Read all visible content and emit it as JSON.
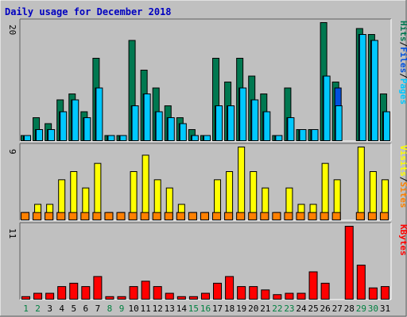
{
  "title": "Daily usage for December 2018",
  "chart_data": [
    {
      "type": "bar",
      "panel": "top",
      "ymax_label": "20",
      "ylim": [
        0,
        20
      ],
      "legend": [
        {
          "name": "Pages",
          "color": "#00c8ff"
        },
        {
          "name": "Files",
          "color": "#0050e0"
        },
        {
          "name": "Hits",
          "color": "#007850"
        }
      ],
      "legend_separator": "/",
      "x": [
        "1",
        "2",
        "3",
        "4",
        "5",
        "6",
        "7",
        "8",
        "9",
        "10",
        "11",
        "12",
        "13",
        "14",
        "15",
        "16",
        "17",
        "18",
        "19",
        "20",
        "21",
        "22",
        "23",
        "24",
        "25",
        "26",
        "27",
        "28",
        "29",
        "30",
        "31"
      ],
      "series": [
        {
          "name": "Hits",
          "color": "#007850",
          "values": [
            1,
            4,
            3,
            7,
            8,
            5,
            14,
            1,
            1,
            17,
            12,
            9,
            6,
            4,
            2,
            1,
            14,
            10,
            14,
            11,
            8,
            1,
            9,
            2,
            2,
            20,
            10,
            0,
            19,
            18,
            8
          ]
        },
        {
          "name": "Files",
          "color": "#0050e0",
          "values": [
            1,
            2,
            2,
            5,
            7,
            4,
            9,
            1,
            1,
            6,
            8,
            5,
            4,
            3,
            1,
            1,
            6,
            6,
            9,
            7,
            5,
            1,
            4,
            2,
            2,
            11,
            9,
            0,
            18,
            17,
            5
          ]
        },
        {
          "name": "Pages",
          "color": "#00c8ff",
          "values": [
            1,
            2,
            2,
            5,
            7,
            4,
            9,
            1,
            1,
            6,
            8,
            5,
            4,
            3,
            1,
            1,
            6,
            6,
            9,
            7,
            5,
            1,
            4,
            2,
            2,
            11,
            6,
            0,
            18,
            17,
            5
          ]
        }
      ]
    },
    {
      "type": "bar",
      "panel": "middle",
      "ymax_label": "9",
      "ylim": [
        0,
        9
      ],
      "legend": [
        {
          "name": "Sites",
          "color": "#ff8000"
        },
        {
          "name": "Visits",
          "color": "#ffff00"
        }
      ],
      "legend_separator": "/",
      "x": [
        "1",
        "2",
        "3",
        "4",
        "5",
        "6",
        "7",
        "8",
        "9",
        "10",
        "11",
        "12",
        "13",
        "14",
        "15",
        "16",
        "17",
        "18",
        "19",
        "20",
        "21",
        "22",
        "23",
        "24",
        "25",
        "26",
        "27",
        "28",
        "29",
        "30",
        "31"
      ],
      "series": [
        {
          "name": "Visits",
          "color": "#ffff00",
          "values": [
            1,
            2,
            2,
            5,
            6,
            4,
            7,
            1,
            1,
            6,
            8,
            5,
            4,
            2,
            1,
            1,
            5,
            6,
            9,
            6,
            4,
            1,
            4,
            2,
            2,
            7,
            5,
            0,
            9,
            6,
            5
          ]
        },
        {
          "name": "Sites",
          "color": "#ff8000",
          "values": [
            1,
            1,
            1,
            1,
            1,
            1,
            1,
            1,
            1,
            1,
            1,
            1,
            1,
            1,
            1,
            1,
            1,
            1,
            1,
            1,
            1,
            1,
            1,
            1,
            1,
            1,
            1,
            0,
            1,
            1,
            1
          ]
        }
      ]
    },
    {
      "type": "bar",
      "panel": "bottom",
      "ymax_label": "11",
      "ylim": [
        0,
        11
      ],
      "legend": [
        {
          "name": "KBytes",
          "color": "#ff0000"
        }
      ],
      "x": [
        "1",
        "2",
        "3",
        "4",
        "5",
        "6",
        "7",
        "8",
        "9",
        "10",
        "11",
        "12",
        "13",
        "14",
        "15",
        "16",
        "17",
        "18",
        "19",
        "20",
        "21",
        "22",
        "23",
        "24",
        "25",
        "26",
        "27",
        "28",
        "29",
        "30",
        "31"
      ],
      "series": [
        {
          "name": "KBytes",
          "color": "#ff0000",
          "values": [
            0.5,
            1,
            1,
            2,
            2.5,
            2,
            3.5,
            0.5,
            0.5,
            2,
            2.8,
            2,
            1,
            0.5,
            0.5,
            1,
            2.5,
            3.5,
            2,
            2,
            1.5,
            0.8,
            1,
            1,
            4.2,
            2.5,
            0,
            11,
            5.2,
            1.8,
            2
          ]
        }
      ]
    }
  ],
  "x_labels": [
    {
      "text": "1",
      "weekend": true
    },
    {
      "text": "2",
      "weekend": true
    },
    {
      "text": "3",
      "weekend": false
    },
    {
      "text": "4",
      "weekend": false
    },
    {
      "text": "5",
      "weekend": false
    },
    {
      "text": "6",
      "weekend": false
    },
    {
      "text": "7",
      "weekend": false
    },
    {
      "text": "8",
      "weekend": true
    },
    {
      "text": "9",
      "weekend": true
    },
    {
      "text": "10",
      "weekend": false
    },
    {
      "text": "11",
      "weekend": false
    },
    {
      "text": "12",
      "weekend": false
    },
    {
      "text": "13",
      "weekend": false
    },
    {
      "text": "14",
      "weekend": false
    },
    {
      "text": "15",
      "weekend": true
    },
    {
      "text": "16",
      "weekend": true
    },
    {
      "text": "17",
      "weekend": false
    },
    {
      "text": "18",
      "weekend": false
    },
    {
      "text": "19",
      "weekend": false
    },
    {
      "text": "20",
      "weekend": false
    },
    {
      "text": "21",
      "weekend": false
    },
    {
      "text": "22",
      "weekend": true
    },
    {
      "text": "23",
      "weekend": true
    },
    {
      "text": "24",
      "weekend": false
    },
    {
      "text": "25",
      "weekend": false
    },
    {
      "text": "26",
      "weekend": false
    },
    {
      "text": "27",
      "weekend": false
    },
    {
      "text": "28",
      "weekend": false
    },
    {
      "text": "29",
      "weekend": true
    },
    {
      "text": "30",
      "weekend": true
    },
    {
      "text": "31",
      "weekend": false
    }
  ],
  "colors": {
    "background": "#c0c0c0",
    "title": "#0000c0",
    "weekday_label": "#000000",
    "weekend_label": "#008040",
    "frame_dark": "#606060",
    "frame_light": "#ffffff"
  }
}
